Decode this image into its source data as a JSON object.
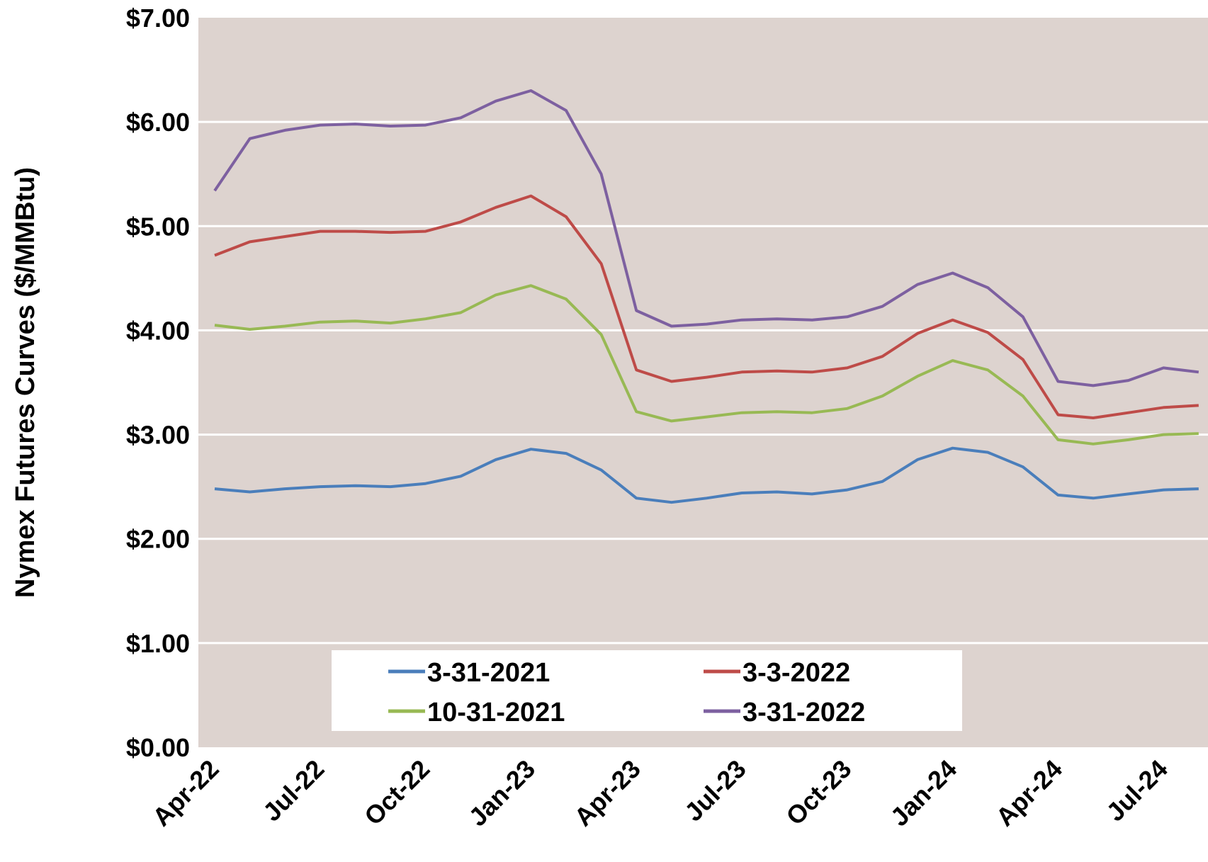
{
  "chart_data": {
    "type": "line",
    "title": "",
    "xlabel": "",
    "ylabel": "Nymex Futures Curves ($/MMBtu)",
    "ylim": [
      0,
      7
    ],
    "yticks": [
      "$0.00",
      "$1.00",
      "$2.00",
      "$3.00",
      "$4.00",
      "$5.00",
      "$6.00",
      "$7.00"
    ],
    "ytick_values": [
      0,
      1,
      2,
      3,
      4,
      5,
      6,
      7
    ],
    "x": [
      "Apr-22",
      "May-22",
      "Jun-22",
      "Jul-22",
      "Aug-22",
      "Sep-22",
      "Oct-22",
      "Nov-22",
      "Dec-22",
      "Jan-23",
      "Feb-23",
      "Mar-23",
      "Apr-23",
      "May-23",
      "Jun-23",
      "Jul-23",
      "Aug-23",
      "Sep-23",
      "Oct-23",
      "Nov-23",
      "Dec-23",
      "Jan-24",
      "Feb-24",
      "Mar-24",
      "Apr-24",
      "May-24",
      "Jun-24",
      "Jul-24",
      "Aug-24"
    ],
    "xtick_labels": [
      "Apr-22",
      "Jul-22",
      "Oct-22",
      "Jan-23",
      "Apr-23",
      "Jul-23",
      "Oct-23",
      "Jan-24",
      "Apr-24",
      "Jul-24"
    ],
    "grid": true,
    "background": "#ddd3cf",
    "legend_placement": "bottom-center",
    "series": [
      {
        "name": "3-31-2021",
        "color": "#4a7ebb",
        "values": [
          2.48,
          2.45,
          2.48,
          2.5,
          2.51,
          2.5,
          2.53,
          2.6,
          2.76,
          2.86,
          2.82,
          2.66,
          2.39,
          2.35,
          2.39,
          2.44,
          2.45,
          2.43,
          2.47,
          2.55,
          2.76,
          2.87,
          2.83,
          2.69,
          2.42,
          2.39,
          2.43,
          2.47,
          2.48
        ]
      },
      {
        "name": "10-31-2021",
        "color": "#98b954",
        "values": [
          4.05,
          4.01,
          4.04,
          4.08,
          4.09,
          4.07,
          4.11,
          4.17,
          4.34,
          4.43,
          4.3,
          3.96,
          3.22,
          3.13,
          3.17,
          3.21,
          3.22,
          3.21,
          3.25,
          3.37,
          3.56,
          3.71,
          3.62,
          3.37,
          2.95,
          2.91,
          2.95,
          3.0,
          3.01
        ]
      },
      {
        "name": "3-3-2022",
        "color": "#be4b48",
        "values": [
          4.72,
          4.85,
          4.9,
          4.95,
          4.95,
          4.94,
          4.95,
          5.04,
          5.18,
          5.29,
          5.09,
          4.64,
          3.62,
          3.51,
          3.55,
          3.6,
          3.61,
          3.6,
          3.64,
          3.75,
          3.97,
          4.1,
          3.98,
          3.72,
          3.19,
          3.16,
          3.21,
          3.26,
          3.28
        ]
      },
      {
        "name": "3-31-2022",
        "color": "#7d60a0",
        "values": [
          5.34,
          5.84,
          5.92,
          5.97,
          5.98,
          5.96,
          5.97,
          6.04,
          6.2,
          6.3,
          6.11,
          5.5,
          4.19,
          4.04,
          4.06,
          4.1,
          4.11,
          4.1,
          4.13,
          4.23,
          4.44,
          4.55,
          4.41,
          4.13,
          3.51,
          3.47,
          3.52,
          3.64,
          3.6
        ]
      }
    ]
  }
}
